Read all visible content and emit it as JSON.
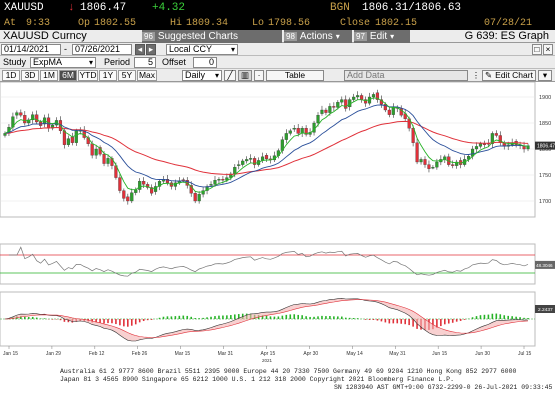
{
  "quote": {
    "ticker": "XAUUSD",
    "arrow": "↓",
    "last": "1806.47",
    "change": "+4.32",
    "source": "BGN",
    "bid_ask": "1806.31/1806.63",
    "at_label": "At",
    "at_value": "9:33",
    "op_label": "Op",
    "op_value": "1802.55",
    "hi_label": "Hi",
    "hi_value": "1809.34",
    "lo_label": "Lo",
    "lo_value": "1798.56",
    "close_label": "Close",
    "close_value": "1802.15",
    "close_date": "07/28/21"
  },
  "toolbar": {
    "security": "XAUUSD Curncy",
    "menu_96": "96",
    "menu_96_label": "Suggested Charts",
    "menu_98": "98",
    "menu_98_label": "Actions",
    "menu_97": "97",
    "menu_97_label": "Edit",
    "graph_id": "G 639: ES Graph",
    "date_from": "01/14/2021",
    "date_to": "07/26/2021",
    "currency": "Local CCY",
    "study_label": "Study",
    "study_value": "ExpMA",
    "period_label": "Period",
    "period_value": "5",
    "offset_label": "Offset",
    "offset_value": "0",
    "ranges": [
      "1D",
      "3D",
      "1M",
      "6M",
      "YTD",
      "1Y",
      "5Y",
      "Max"
    ],
    "selected_range": "6M",
    "frequency": "Daily",
    "table_label": "Table",
    "add_data_placeholder": "Add Data",
    "edit_chart_label": "Edit Chart"
  },
  "colors": {
    "up": "#2e9e2e",
    "down": "#e0313a",
    "ema_fast": "#27b327",
    "ema_mid": "#2a4f9a",
    "ema_slow": "#e0313a"
  },
  "chart_data": {
    "type": "candlestick",
    "price_axis": {
      "ticks": [
        1700,
        1750,
        1800,
        1850,
        1900
      ],
      "ylim": [
        1675,
        1925
      ]
    },
    "last_price_label": "1806.47",
    "x_tick_labels": [
      "Jan 15",
      "Jan 29",
      "Feb 12",
      "Feb 26",
      "Mar 15",
      "Mar 31",
      "Apr 15",
      "Apr 30",
      "May 14",
      "May 31",
      "Jun 15",
      "Jun 30",
      "Jul 15"
    ],
    "x_year_label": "2021",
    "closes": [
      1830,
      1842,
      1862,
      1870,
      1865,
      1850,
      1856,
      1866,
      1852,
      1845,
      1860,
      1840,
      1846,
      1855,
      1835,
      1808,
      1820,
      1812,
      1835,
      1836,
      1822,
      1810,
      1788,
      1800,
      1790,
      1772,
      1782,
      1768,
      1745,
      1720,
      1705,
      1700,
      1716,
      1722,
      1738,
      1732,
      1726,
      1715,
      1728,
      1738,
      1742,
      1735,
      1728,
      1735,
      1738,
      1740,
      1730,
      1715,
      1700,
      1713,
      1720,
      1728,
      1732,
      1740,
      1742,
      1740,
      1745,
      1752,
      1765,
      1770,
      1777,
      1780,
      1782,
      1770,
      1778,
      1785,
      1781,
      1779,
      1787,
      1797,
      1818,
      1830,
      1835,
      1840,
      1830,
      1840,
      1828,
      1832,
      1850,
      1865,
      1875,
      1870,
      1882,
      1880,
      1890,
      1895,
      1878,
      1895,
      1900,
      1903,
      1895,
      1888,
      1900,
      1905,
      1895,
      1886,
      1875,
      1866,
      1880,
      1878,
      1865,
      1858,
      1840,
      1812,
      1775,
      1780,
      1770,
      1762,
      1765,
      1775,
      1780,
      1785,
      1770,
      1768,
      1775,
      1770,
      1780,
      1786,
      1800,
      1805,
      1810,
      1808,
      1810,
      1830,
      1826,
      1812,
      1805,
      1808,
      1812,
      1808,
      1806,
      1800,
      1806.47
    ],
    "rsi": {
      "ticks": [
        30,
        70
      ],
      "ylim": [
        10,
        90
      ],
      "last_label": "48.3046"
    },
    "macd": {
      "last_label": "2.2437"
    }
  },
  "footer": {
    "line1": "Australia 61 2 9777 8600 Brazil 5511 2395 9000 Europe 44 20 7330 7500 Germany 49 69 9204 1210 Hong Kong 852 2977 6000",
    "line2": "Japan 81 3 4565 8900       Singapore 65 6212 1000       U.S. 1 212 318 2000         Copyright 2021 Bloomberg Finance L.P.",
    "line3": "SN 1283940 AST  GMT+9:00 G732-2299-0 26-Jul-2021 09:33:45"
  }
}
